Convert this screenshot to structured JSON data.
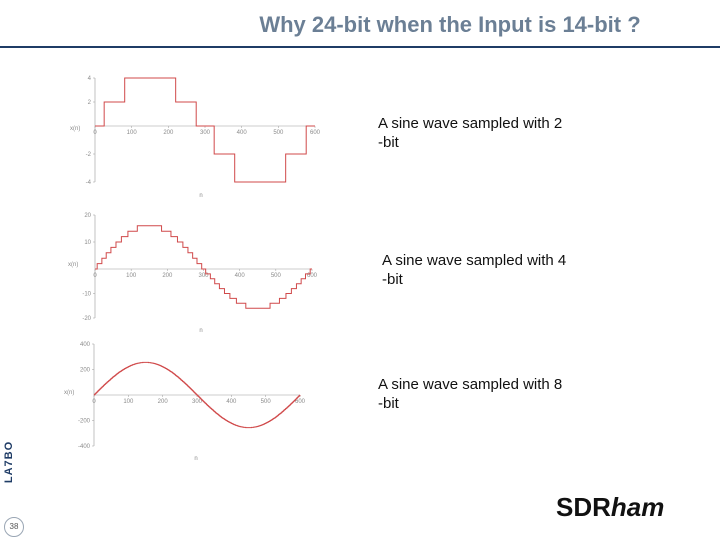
{
  "title": "Why 24-bit when the Input is 14-bit ?",
  "captions": [
    {
      "line1": "A sine wave sampled with 2",
      "line2": "-bit"
    },
    {
      "line1": "A sine wave sampled with 4",
      "line2": "-bit"
    },
    {
      "line1": "A sine wave sampled with 8",
      "line2": "-bit"
    }
  ],
  "vertical_label": "LA7BO",
  "page_number": "38",
  "brand": {
    "part1": "SDR",
    "part2": "ham"
  },
  "colors": {
    "accent": "#6b7f95",
    "rule": "#1f3c66",
    "wave": "#d0494a"
  },
  "chart_data": [
    {
      "type": "line",
      "xlabel": "n",
      "ylabel": "x(n)",
      "xlim": [
        0,
        600
      ],
      "ylim": [
        -4,
        4
      ],
      "xticks": [
        "0",
        "100",
        "200",
        "300",
        "400",
        "500",
        "600"
      ],
      "yticks": [
        "4",
        "2",
        "-2",
        "-4"
      ],
      "bits": 2,
      "series": [
        {
          "function": "quantized sine",
          "amplitude": 4,
          "period": 600,
          "step": "staircase"
        }
      ]
    },
    {
      "type": "line",
      "xlabel": "n",
      "ylabel": "x(n)",
      "xlim": [
        0,
        600
      ],
      "ylim": [
        -20,
        20
      ],
      "xticks": [
        "0",
        "100",
        "200",
        "300",
        "400",
        "500",
        "600"
      ],
      "yticks": [
        "20",
        "10",
        "-10",
        "-20"
      ],
      "bits": 4,
      "series": [
        {
          "function": "quantized sine",
          "amplitude": 16,
          "period": 600,
          "step": "staircase"
        }
      ]
    },
    {
      "type": "line",
      "xlabel": "n",
      "ylabel": "x(n)",
      "xlim": [
        0,
        600
      ],
      "ylim": [
        -400,
        400
      ],
      "xticks": [
        "0",
        "100",
        "200",
        "300",
        "400",
        "500",
        "600"
      ],
      "yticks": [
        "400",
        "200",
        "-200",
        "-400"
      ],
      "bits": 8,
      "series": [
        {
          "function": "quantized sine",
          "amplitude": 256,
          "period": 600,
          "step": "staircase"
        }
      ]
    }
  ]
}
